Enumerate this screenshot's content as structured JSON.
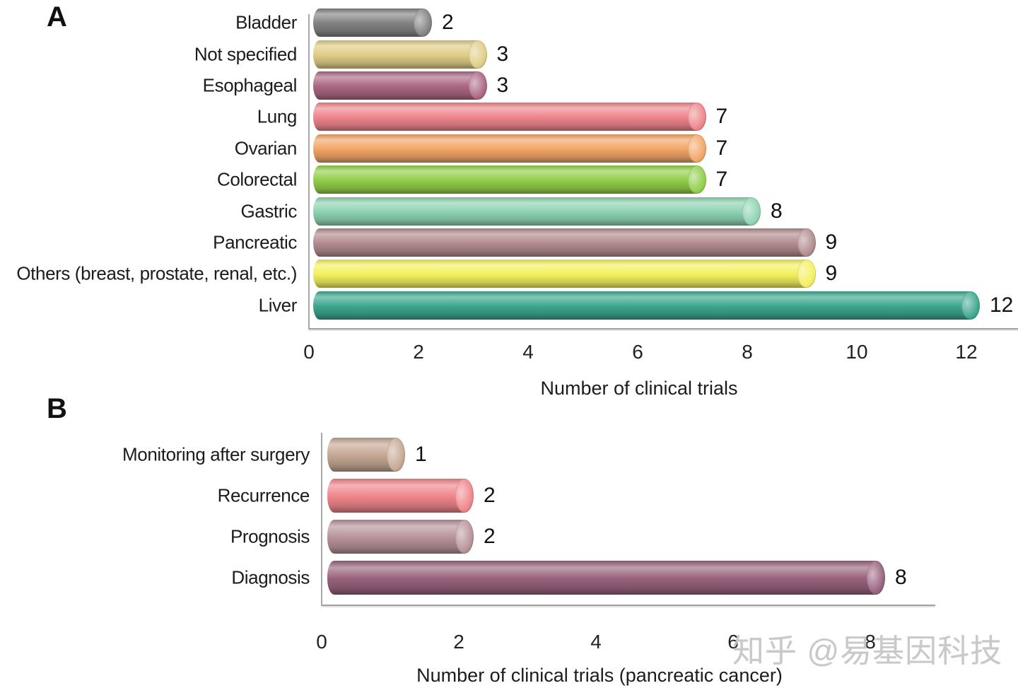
{
  "figure": {
    "panels": [
      {
        "letter": "A",
        "xlabel": "Number of clinical trials",
        "ticks": [
          "0",
          "2",
          "4",
          "6",
          "8",
          "10",
          "12"
        ],
        "bars": [
          {
            "label": "Bladder",
            "value": 2,
            "display": "2",
            "color": "#828282"
          },
          {
            "label": "Not specified",
            "value": 3,
            "display": "3",
            "color": "#e0cd85"
          },
          {
            "label": "Esophageal",
            "value": 3,
            "display": "3",
            "color": "#ab6782"
          },
          {
            "label": "Lung",
            "value": 7,
            "display": "7",
            "color": "#ee858c"
          },
          {
            "label": "Ovarian",
            "value": 7,
            "display": "7",
            "color": "#f2a566"
          },
          {
            "label": "Colorectal",
            "value": 7,
            "display": "7",
            "color": "#92ce49"
          },
          {
            "label": "Gastric",
            "value": 8,
            "display": "8",
            "color": "#8ed3b1"
          },
          {
            "label": "Pancreatic",
            "value": 9,
            "display": "9",
            "color": "#b28b8e"
          },
          {
            "label": "Others (breast, prostate, renal, etc.)",
            "value": 9,
            "display": "9",
            "color": "#f3f05e"
          },
          {
            "label": "Liver",
            "value": 12,
            "display": "12",
            "color": "#3ca78d"
          }
        ]
      },
      {
        "letter": "B",
        "xlabel": "Number of clinical trials (pancreatic cancer)",
        "ticks": [
          "0",
          "2",
          "4",
          "6",
          "8"
        ],
        "bars": [
          {
            "label": "Monitoring after surgery",
            "value": 1,
            "display": "1",
            "color": "#c5a894"
          },
          {
            "label": "Recurrence",
            "value": 2,
            "display": "2",
            "color": "#ef868b"
          },
          {
            "label": "Prognosis",
            "value": 2,
            "display": "2",
            "color": "#b7939a"
          },
          {
            "label": "Diagnosis",
            "value": 8,
            "display": "8",
            "color": "#99627e"
          }
        ]
      }
    ],
    "watermark": "知乎 @易基因科技"
  },
  "chart_data": [
    {
      "type": "bar",
      "orientation": "horizontal",
      "panel": "A",
      "categories": [
        "Bladder",
        "Not specified",
        "Esophageal",
        "Lung",
        "Ovarian",
        "Colorectal",
        "Gastric",
        "Pancreatic",
        "Others (breast, prostate, renal, etc.)",
        "Liver"
      ],
      "values": [
        2,
        3,
        3,
        7,
        7,
        7,
        8,
        9,
        9,
        12
      ],
      "title": "",
      "xlabel": "Number of clinical trials",
      "ylabel": "",
      "xlim": [
        0,
        12
      ],
      "xticks": [
        0,
        2,
        4,
        6,
        8,
        10,
        12
      ],
      "grid": false,
      "legend": false,
      "data_labels": true,
      "bar_colors": [
        "#828282",
        "#e0cd85",
        "#ab6782",
        "#ee858c",
        "#f2a566",
        "#92ce49",
        "#8ed3b1",
        "#b28b8e",
        "#f3f05e",
        "#3ca78d"
      ]
    },
    {
      "type": "bar",
      "orientation": "horizontal",
      "panel": "B",
      "categories": [
        "Monitoring after surgery",
        "Recurrence",
        "Prognosis",
        "Diagnosis"
      ],
      "values": [
        1,
        2,
        2,
        8
      ],
      "title": "",
      "xlabel": "Number of clinical trials (pancreatic cancer)",
      "ylabel": "",
      "xlim": [
        0,
        8
      ],
      "xticks": [
        0,
        2,
        4,
        6,
        8
      ],
      "grid": false,
      "legend": false,
      "data_labels": true,
      "bar_colors": [
        "#c5a894",
        "#ef868b",
        "#b7939a",
        "#99627e"
      ]
    }
  ]
}
